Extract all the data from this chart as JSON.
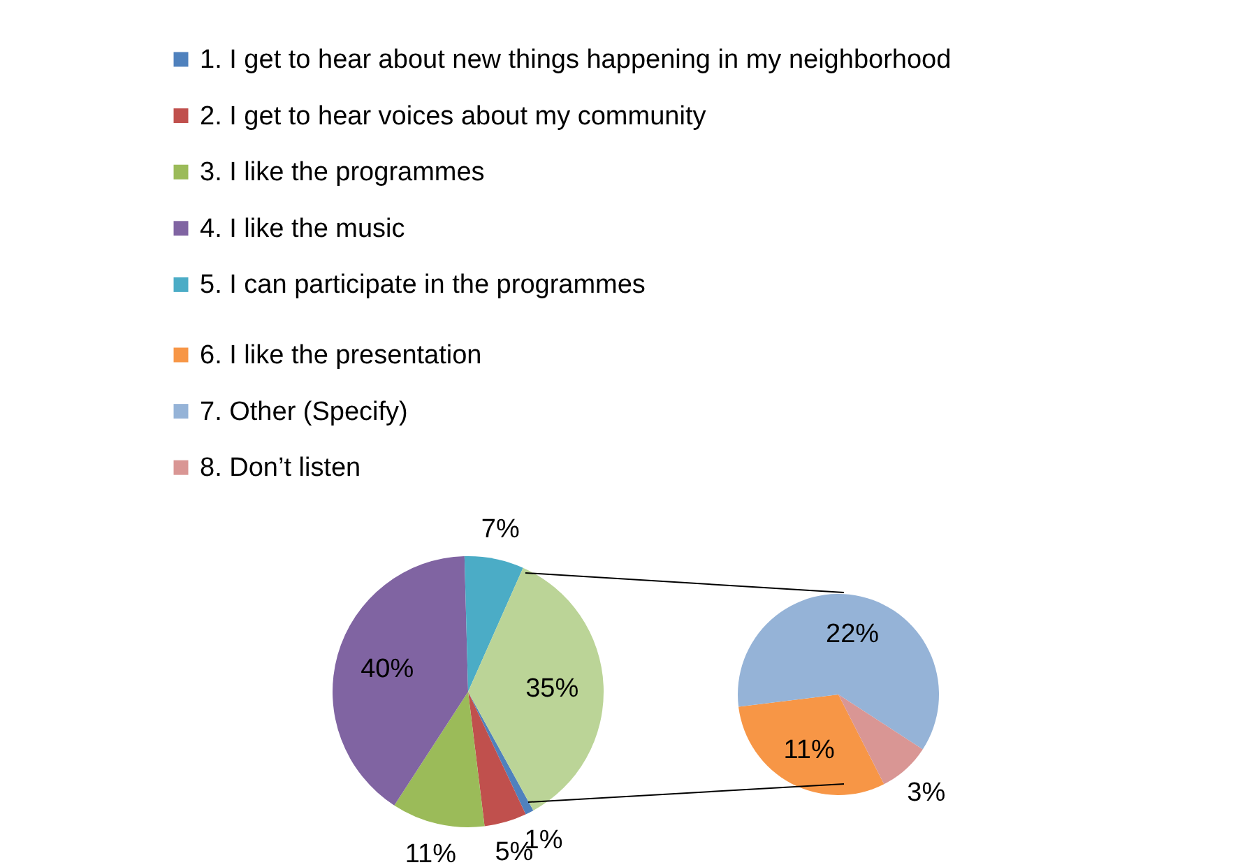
{
  "chart_data": [
    {
      "type": "pie",
      "legend": "top",
      "categories": [
        "1. I get to hear about new things happening in my neighborhood",
        "2. I get to hear voices about my community",
        "3. I like the programmes",
        "4. I like the music",
        "5. I can participate in the programmes",
        null
      ],
      "values": [
        1,
        5,
        11,
        40,
        7,
        35
      ],
      "colors": [
        "#4f81bd",
        "#c0504d",
        "#9bbb59",
        "#8064a2",
        "#4bacc6",
        "#bbd497"
      ],
      "value_labels": [
        "1%",
        "5%",
        "11%",
        "40%",
        "7%",
        "35%"
      ]
    },
    {
      "type": "pie",
      "legend": "top",
      "categories": [
        "6. I like the presentation",
        "7. Other (Specify)",
        "8. Don’t listen"
      ],
      "values": [
        11,
        22,
        3
      ],
      "colors": [
        "#f79646",
        "#95b3d7",
        "#d99694"
      ],
      "value_labels": [
        "11%",
        "22%",
        "3%"
      ]
    }
  ]
}
